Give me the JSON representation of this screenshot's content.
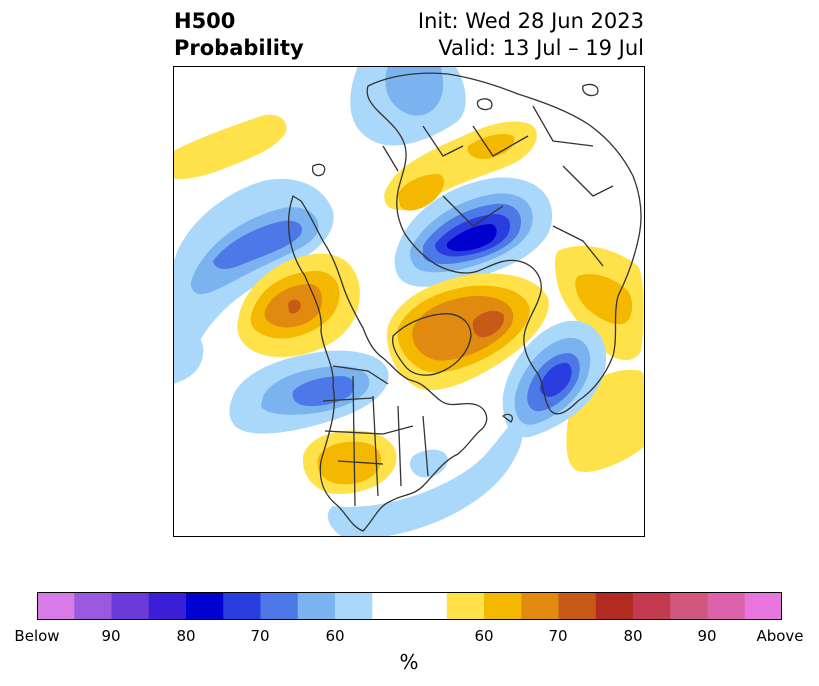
{
  "header": {
    "left_line1": "H500",
    "left_line2": "Probability",
    "right_line1": "Init: Wed 28 Jun 2023",
    "right_line2": "Valid: 13 Jul – 19 Jul"
  },
  "colorbar": {
    "units": "%",
    "tick_labels": [
      "Below",
      "90",
      "80",
      "70",
      "60",
      "60",
      "70",
      "80",
      "90",
      "Above"
    ],
    "colors": [
      "#d87ae8",
      "#9b59e0",
      "#6c3ad8",
      "#3b1fd6",
      "#0000cf",
      "#2a3ee0",
      "#4d78e8",
      "#7ab3f0",
      "#aad8fa",
      "#ffffff",
      "#ffe14a",
      "#f4b800",
      "#e08a10",
      "#c85a18",
      "#b32a22",
      "#c43a50",
      "#d0587e",
      "#dc62ac",
      "#e876de"
    ]
  },
  "map": {
    "outline_color": "#333333",
    "anomaly_colors": {
      "below_60": "#aad8fa",
      "below_70": "#7ab3f0",
      "below_80": "#4d78e8",
      "below_90": "#2a3ee0",
      "above_60": "#ffe14a",
      "above_70": "#f4b800",
      "above_80": "#e08a10",
      "above_90": "#c85a18"
    }
  }
}
